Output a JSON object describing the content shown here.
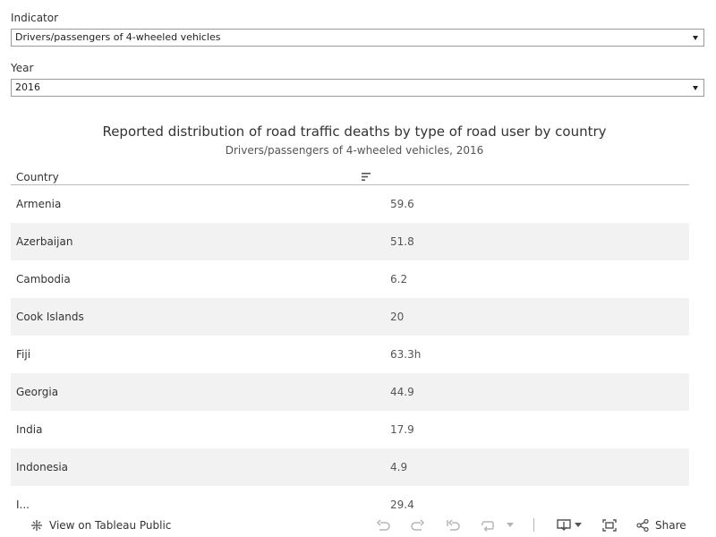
{
  "filters": {
    "indicator": {
      "label": "Indicator",
      "value": "Drivers/passengers of 4-wheeled vehicles"
    },
    "year": {
      "label": "Year",
      "value": "2016"
    }
  },
  "view": {
    "title": "Reported distribution of road traffic deaths by type of road user by country",
    "subtitle": "Drivers/passengers of 4-wheeled vehicles, 2016",
    "column_header": "Country"
  },
  "table": {
    "rows": [
      {
        "country": "Armenia",
        "value": "59.6"
      },
      {
        "country": "Azerbaijan",
        "value": "51.8"
      },
      {
        "country": "Cambodia",
        "value": "6.2"
      },
      {
        "country": "Cook Islands",
        "value": "20"
      },
      {
        "country": "Fiji",
        "value": "63.3h"
      },
      {
        "country": "Georgia",
        "value": "44.9"
      },
      {
        "country": "India",
        "value": "17.9"
      },
      {
        "country": "Indonesia",
        "value": "4.9"
      },
      {
        "country": "I...",
        "value": "29.4"
      }
    ]
  },
  "toolbar": {
    "view_on_public": "View on Tableau Public",
    "share": "Share",
    "icons": [
      "tableau-logo-icon",
      "undo-icon",
      "redo-icon",
      "revert-icon",
      "refresh-icon",
      "pause-icon",
      "download-icon",
      "fullscreen-icon",
      "share-icon"
    ]
  },
  "colors": {
    "border": "#9a9a9a",
    "alt_row": "#f2f2f2",
    "icon": "#9a9a9a"
  }
}
